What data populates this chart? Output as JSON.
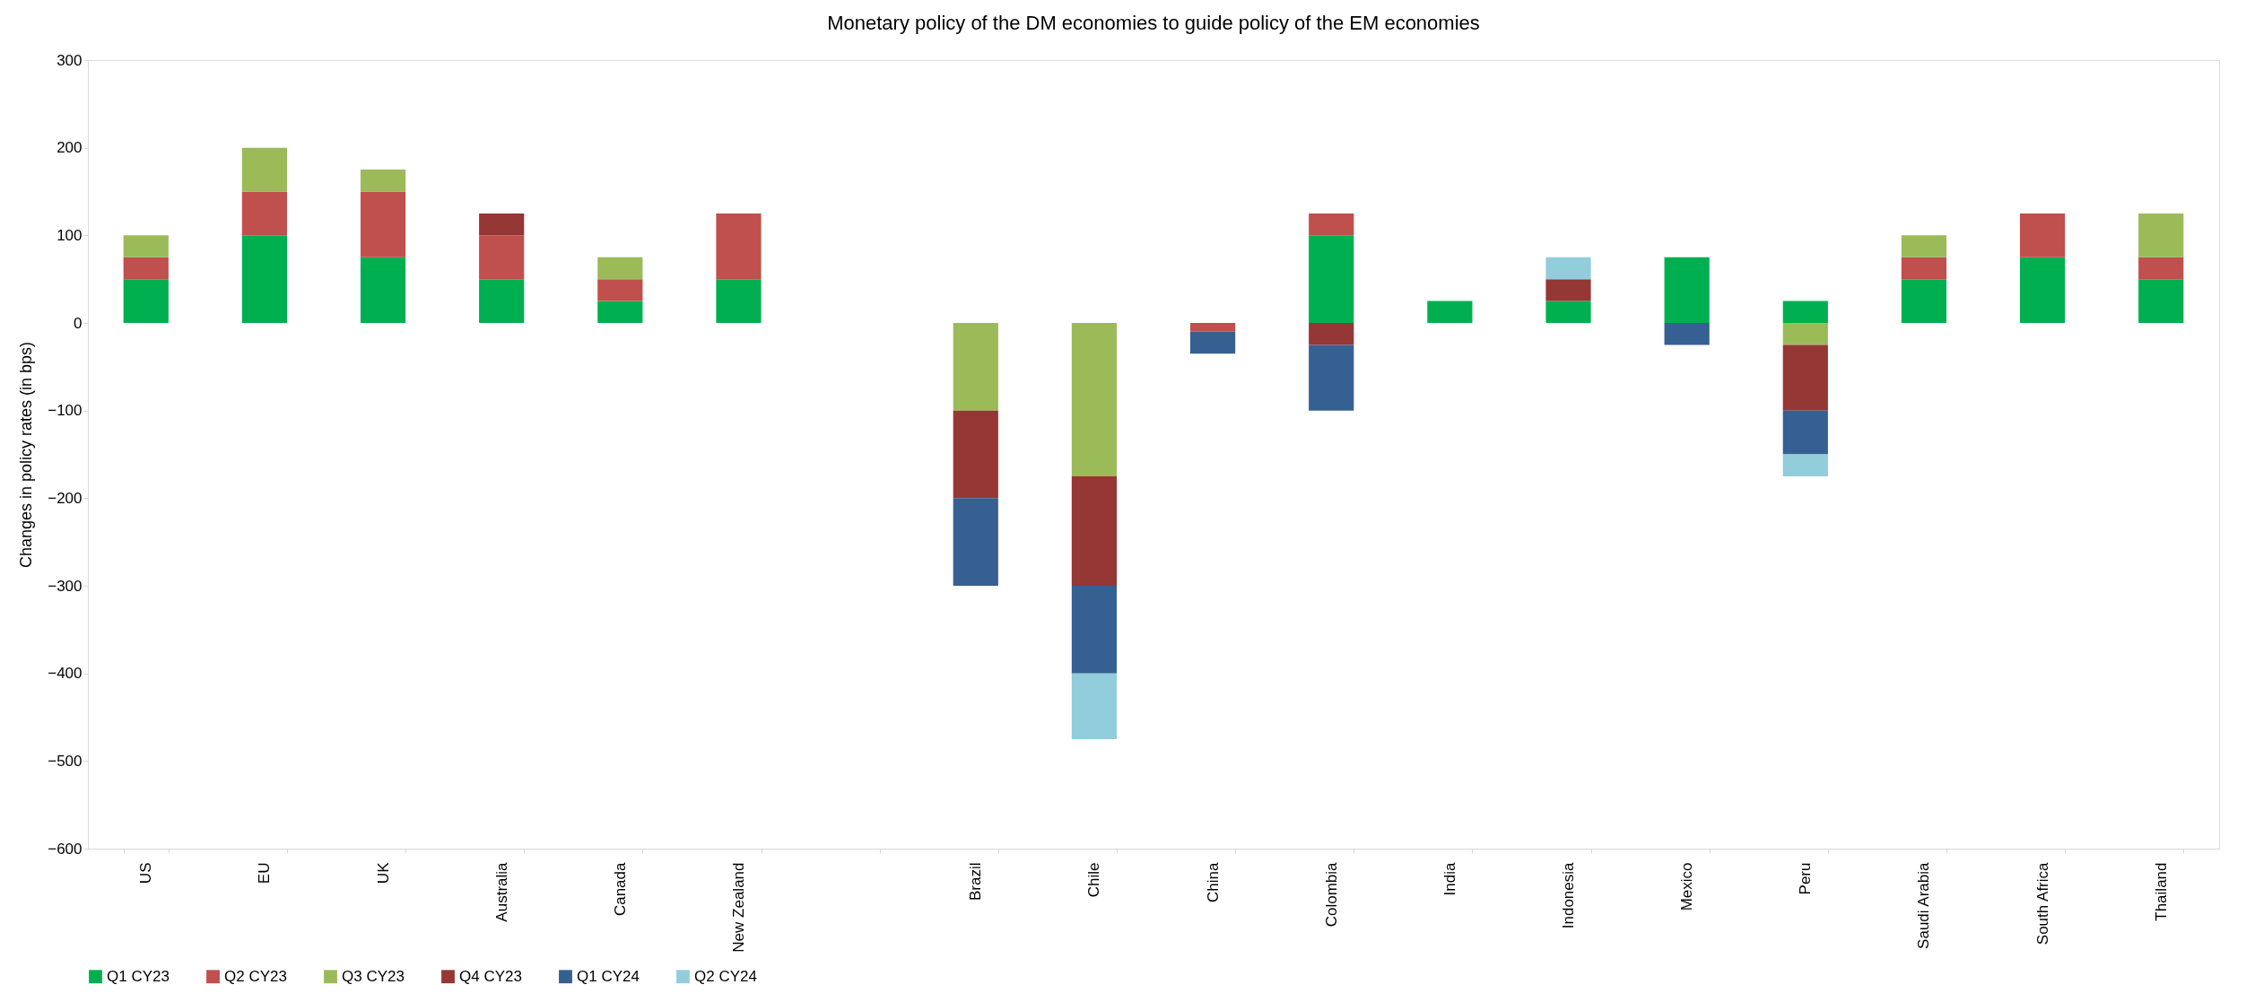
{
  "chart_data": {
    "type": "bar",
    "stacked": true,
    "title": "Monetary policy of the DM economies to guide policy of the EM economies",
    "ylabel": "Changes in policy rates (in bps)",
    "categories": [
      "US",
      "EU",
      "UK",
      "Australia",
      "Canada",
      "New Zealand",
      null,
      "Brazil",
      "Chile",
      "China",
      "Colombia",
      "India",
      "Indonesia",
      "Mexico",
      "Peru",
      "Saudi Arabia",
      "South Africa",
      "Thailand"
    ],
    "series": [
      {
        "name": "Q1 CY23",
        "color": "#00b050",
        "values": [
          50,
          100,
          75,
          50,
          25,
          50,
          null,
          null,
          null,
          null,
          100,
          25,
          25,
          75,
          25,
          50,
          75,
          50
        ]
      },
      {
        "name": "Q2 CY23",
        "color": "#c0504d",
        "values": [
          25,
          50,
          75,
          50,
          25,
          75,
          null,
          null,
          null,
          -10,
          25,
          null,
          null,
          null,
          null,
          25,
          50,
          25
        ]
      },
      {
        "name": "Q3 CY23",
        "color": "#9bbb59",
        "values": [
          25,
          50,
          25,
          null,
          25,
          null,
          null,
          -100,
          -175,
          null,
          null,
          null,
          null,
          null,
          -25,
          25,
          null,
          50
        ]
      },
      {
        "name": "Q4 CY23",
        "color": "#953735",
        "values": [
          null,
          null,
          null,
          25,
          null,
          null,
          null,
          -100,
          -125,
          null,
          -25,
          null,
          25,
          null,
          -75,
          null,
          null,
          null
        ]
      },
      {
        "name": "Q1 CY24",
        "color": "#366092",
        "values": [
          null,
          null,
          null,
          null,
          null,
          null,
          null,
          -100,
          -100,
          -25,
          -75,
          null,
          null,
          -25,
          -50,
          null,
          null,
          null
        ]
      },
      {
        "name": "Q2 CY24",
        "color": "#92cddc",
        "values": [
          null,
          null,
          null,
          null,
          null,
          null,
          null,
          null,
          -75,
          null,
          null,
          null,
          25,
          null,
          -25,
          null,
          null,
          null
        ]
      }
    ],
    "ylim": [
      -600,
      300
    ],
    "yticks": [
      -600,
      -500,
      -400,
      -300,
      -200,
      -100,
      0,
      100,
      200,
      300
    ],
    "grid": false,
    "legend": "bottom"
  }
}
